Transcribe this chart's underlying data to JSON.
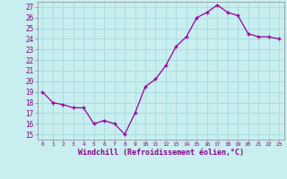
{
  "x": [
    0,
    1,
    2,
    3,
    4,
    5,
    6,
    7,
    8,
    9,
    10,
    11,
    12,
    13,
    14,
    15,
    16,
    17,
    18,
    19,
    20,
    21,
    22,
    23
  ],
  "y": [
    19,
    18,
    17.8,
    17.5,
    17.5,
    16,
    16.3,
    16,
    15,
    17,
    19.5,
    20.2,
    21.5,
    23.3,
    24.2,
    26,
    26.5,
    27.2,
    26.5,
    26.2,
    24.5,
    24.2,
    24.2,
    24
  ],
  "line_color": "#990099",
  "marker": "+",
  "background_color": "#c8eef0",
  "grid_color": "#aadddf",
  "xlabel": "Windchill (Refroidissement éolien,°C)",
  "ylabel_ticks": [
    15,
    16,
    17,
    18,
    19,
    20,
    21,
    22,
    23,
    24,
    25,
    26,
    27
  ],
  "xlim": [
    -0.5,
    23.5
  ],
  "ylim": [
    14.5,
    27.5
  ]
}
